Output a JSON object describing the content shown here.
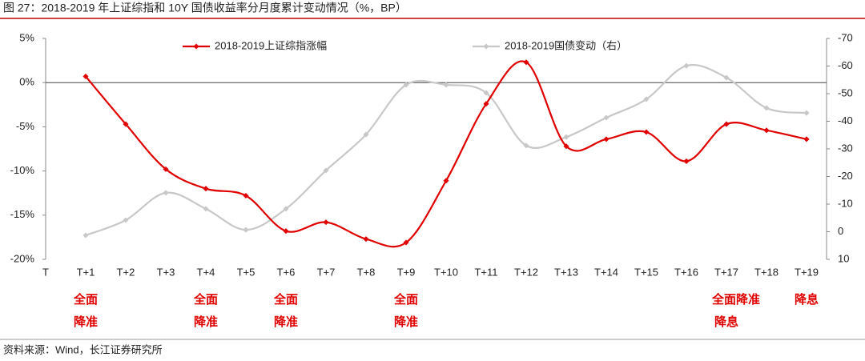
{
  "chart_data": {
    "type": "line",
    "title": "图 27：2018-2019 年上证综指和 10Y 国债收益率分月度累计变动情况（%，BP）",
    "source": "资料来源：Wind，长江证券研究所",
    "categories": [
      "T",
      "T+1",
      "T+2",
      "T+3",
      "T+4",
      "T+5",
      "T+6",
      "T+7",
      "T+8",
      "T+9",
      "T+10",
      "T+11",
      "T+12",
      "T+13",
      "T+14",
      "T+15",
      "T+16",
      "T+17",
      "T+18",
      "T+19"
    ],
    "series": [
      {
        "name": "2018-2019上证综指涨幅",
        "color": "#e00000",
        "values": [
          null,
          0.7,
          -4.7,
          -9.8,
          -12.0,
          -12.8,
          -16.8,
          -15.8,
          -17.7,
          -18.1,
          -11.1,
          -2.4,
          2.3,
          -7.2,
          -6.4,
          -5.6,
          -8.9,
          -4.7,
          -5.4,
          -6.4
        ]
      },
      {
        "name": "2018-2019国债变动（右）",
        "color": "#c8c8c8",
        "axis": "y2",
        "values": [
          null,
          1.3,
          -4.2,
          -14.1,
          -8.3,
          -0.7,
          -8.3,
          -22.2,
          -35.2,
          -53.2,
          -53.2,
          -50.3,
          -31.2,
          -34.3,
          -41.3,
          -48.0,
          -60.1,
          -55.8,
          -44.8,
          -43.0
        ]
      }
    ],
    "ylim": [
      -20,
      5
    ],
    "yticks": [
      {
        "value": 5,
        "label": "5%"
      },
      {
        "value": 0,
        "label": "0%"
      },
      {
        "value": -5,
        "label": "-5%"
      },
      {
        "value": -10,
        "label": "-10%"
      },
      {
        "value": -15,
        "label": "-15%"
      },
      {
        "value": -20,
        "label": "-20%"
      }
    ],
    "y2lim": [
      10,
      -70
    ],
    "y2ticks": [
      -70,
      -60,
      -50,
      -40,
      -30,
      -20,
      -10,
      0,
      10
    ],
    "annotations": [
      null,
      [
        "全面",
        "降准"
      ],
      null,
      null,
      [
        "全面",
        "降准"
      ],
      null,
      [
        "全面",
        "降准"
      ],
      null,
      null,
      [
        "全面",
        "降准"
      ],
      null,
      null,
      null,
      null,
      null,
      null,
      null,
      [
        "全面降准",
        "降息"
      ],
      null,
      [
        "降息"
      ]
    ]
  }
}
